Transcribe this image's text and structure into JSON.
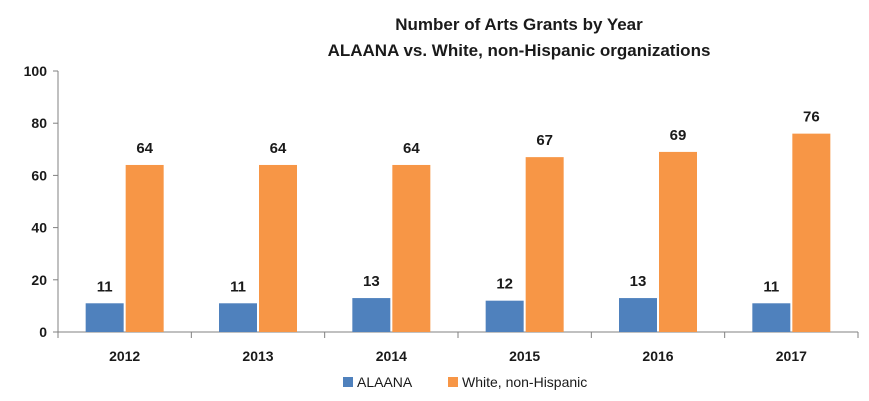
{
  "chart_data": {
    "type": "bar",
    "title_lines": [
      "Number of Arts Grants by Year",
      "ALAANA vs. White, non-Hispanic organizations"
    ],
    "categories": [
      "2012",
      "2013",
      "2014",
      "2015",
      "2016",
      "2017"
    ],
    "series": [
      {
        "name": "ALAANA",
        "color": "#4f81bd",
        "values": [
          11,
          11,
          13,
          12,
          13,
          11
        ]
      },
      {
        "name": "White, non-Hispanic",
        "color": "#f79646",
        "values": [
          64,
          64,
          64,
          67,
          69,
          76
        ]
      }
    ],
    "ylim": [
      0,
      100
    ],
    "yticks": [
      0,
      20,
      40,
      60,
      80,
      100
    ],
    "grid": false,
    "legend_position": "bottom",
    "data_labels": true
  }
}
